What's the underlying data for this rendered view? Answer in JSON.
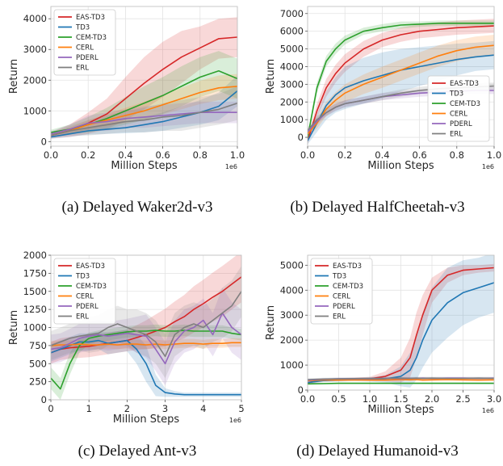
{
  "colors": {
    "EAS-TD3": "#d62728",
    "TD3": "#1f77b4",
    "CEM-TD3": "#2ca02c",
    "CERL": "#ff7f0e",
    "PDERL": "#9467bd",
    "ERL": "#7f7f7f"
  },
  "chart_data": [
    {
      "type": "line",
      "caption": "(a) Delayed Waker2d-v3",
      "xlabel": "Million Steps",
      "ylabel": "Return",
      "x_offset_label": "1e6",
      "xlim": [
        0,
        1.0
      ],
      "ylim": [
        -150,
        4400
      ],
      "xticks": [
        0.0,
        0.2,
        0.4,
        0.6,
        0.8,
        1.0
      ],
      "xtick_labels": [
        "0.0",
        "0.2",
        "0.4",
        "0.6",
        "0.8",
        "1.0"
      ],
      "yticks": [
        0,
        1000,
        2000,
        3000,
        4000
      ],
      "ytick_labels": [
        "0",
        "1000",
        "2000",
        "3000",
        "4000"
      ],
      "grid": true,
      "legend_position": "top-left",
      "x": [
        0,
        0.1,
        0.2,
        0.3,
        0.4,
        0.5,
        0.6,
        0.7,
        0.8,
        0.9,
        1.0
      ],
      "series": [
        {
          "name": "EAS-TD3",
          "values": [
            200,
            350,
            600,
            900,
            1400,
            1900,
            2350,
            2750,
            3050,
            3350,
            3400
          ],
          "band": [
            100,
            200,
            350,
            500,
            700,
            850,
            900,
            850,
            700,
            650,
            650
          ]
        },
        {
          "name": "TD3",
          "values": [
            150,
            250,
            350,
            400,
            450,
            550,
            650,
            800,
            950,
            1150,
            1650
          ],
          "band": [
            60,
            100,
            120,
            150,
            180,
            250,
            300,
            350,
            400,
            450,
            500
          ]
        },
        {
          "name": "CEM-TD3",
          "values": [
            300,
            400,
            550,
            750,
            1000,
            1250,
            1500,
            1800,
            2100,
            2300,
            2050
          ],
          "band": [
            80,
            150,
            250,
            350,
            450,
            550,
            600,
            650,
            650,
            650,
            650
          ]
        },
        {
          "name": "CERL",
          "values": [
            200,
            350,
            550,
            700,
            850,
            1000,
            1200,
            1400,
            1600,
            1750,
            1800
          ],
          "band": [
            60,
            100,
            150,
            200,
            250,
            300,
            320,
            350,
            380,
            400,
            400
          ]
        },
        {
          "name": "PDERL",
          "values": [
            250,
            400,
            600,
            650,
            750,
            800,
            850,
            900,
            950,
            950,
            950
          ],
          "band": [
            80,
            150,
            250,
            300,
            300,
            350,
            350,
            350,
            350,
            350,
            350
          ]
        },
        {
          "name": "ERL",
          "values": [
            200,
            350,
            450,
            550,
            650,
            700,
            800,
            850,
            950,
            1050,
            1250
          ],
          "band": [
            80,
            150,
            250,
            300,
            350,
            400,
            450,
            500,
            500,
            500,
            550
          ]
        }
      ]
    },
    {
      "type": "line",
      "caption": "(b) Delayed HalfCheetah-v3",
      "xlabel": "Million Steps",
      "ylabel": "Return",
      "x_offset_label": "1e6",
      "xlim": [
        0,
        1.0
      ],
      "ylim": [
        -500,
        7400
      ],
      "xticks": [
        0.0,
        0.2,
        0.4,
        0.6,
        0.8,
        1.0
      ],
      "xtick_labels": [
        "0.0",
        "0.2",
        "0.4",
        "0.6",
        "0.8",
        "1.0"
      ],
      "yticks": [
        0,
        1000,
        2000,
        3000,
        4000,
        5000,
        6000,
        7000
      ],
      "ytick_labels": [
        "0",
        "1000",
        "2000",
        "3000",
        "4000",
        "5000",
        "6000",
        "7000"
      ],
      "grid": true,
      "legend_position": "bottom-right",
      "x": [
        0,
        0.05,
        0.1,
        0.15,
        0.2,
        0.3,
        0.4,
        0.5,
        0.6,
        0.7,
        0.8,
        0.9,
        1.0
      ],
      "series": [
        {
          "name": "EAS-TD3",
          "values": [
            -200,
            1500,
            2800,
            3600,
            4200,
            5000,
            5500,
            5800,
            6000,
            6100,
            6200,
            6250,
            6300
          ],
          "band": [
            200,
            400,
            500,
            500,
            500,
            450,
            400,
            400,
            400,
            400,
            400,
            400,
            400
          ]
        },
        {
          "name": "TD3",
          "values": [
            -200,
            800,
            1800,
            2400,
            2800,
            3200,
            3500,
            3800,
            4000,
            4200,
            4400,
            4550,
            4650
          ],
          "band": [
            200,
            500,
            800,
            1000,
            1200,
            1300,
            1300,
            1200,
            1100,
            1000,
            900,
            800,
            800
          ]
        },
        {
          "name": "CEM-TD3",
          "values": [
            0,
            2800,
            4300,
            5000,
            5500,
            6000,
            6200,
            6350,
            6400,
            6450,
            6450,
            6450,
            6450
          ],
          "band": [
            200,
            300,
            300,
            300,
            250,
            200,
            200,
            200,
            150,
            150,
            150,
            150,
            150
          ]
        },
        {
          "name": "CERL",
          "values": [
            200,
            800,
            1600,
            2100,
            2500,
            3000,
            3400,
            3800,
            4200,
            4600,
            4900,
            5100,
            5200
          ],
          "band": [
            200,
            300,
            400,
            450,
            500,
            550,
            600,
            600,
            600,
            600,
            600,
            600,
            600
          ]
        },
        {
          "name": "PDERL",
          "values": [
            300,
            900,
            1400,
            1700,
            1900,
            2100,
            2300,
            2400,
            2500,
            2550,
            2600,
            2650,
            2650
          ],
          "band": [
            150,
            200,
            200,
            200,
            200,
            200,
            200,
            200,
            200,
            200,
            200,
            200,
            200
          ]
        },
        {
          "name": "ERL",
          "values": [
            400,
            1000,
            1400,
            1700,
            1900,
            2100,
            2300,
            2500,
            2650,
            2750,
            2800,
            2850,
            2900
          ],
          "band": [
            150,
            200,
            200,
            200,
            200,
            200,
            200,
            200,
            200,
            200,
            200,
            200,
            200
          ]
        }
      ]
    },
    {
      "type": "line",
      "caption": "(c) Delayed Ant-v3",
      "xlabel": "Million Steps",
      "ylabel": "Return",
      "x_offset_label": "1e6",
      "xlim": [
        0,
        5
      ],
      "ylim": [
        0,
        2000
      ],
      "xticks": [
        0,
        1,
        2,
        3,
        4,
        5
      ],
      "xtick_labels": [
        "0",
        "1",
        "2",
        "3",
        "4",
        "5"
      ],
      "yticks": [
        0,
        250,
        500,
        750,
        1000,
        1250,
        1500,
        1750,
        2000
      ],
      "ytick_labels": [
        "0",
        "250",
        "500",
        "750",
        "1000",
        "1250",
        "1500",
        "1750",
        "2000"
      ],
      "grid": true,
      "legend_position": "top-left",
      "x": [
        0,
        0.25,
        0.5,
        0.75,
        1.0,
        1.25,
        1.5,
        1.75,
        2.0,
        2.25,
        2.5,
        2.75,
        3.0,
        3.25,
        3.5,
        3.75,
        4.0,
        4.25,
        4.5,
        4.75,
        5.0
      ],
      "series": [
        {
          "name": "EAS-TD3",
          "values": [
            650,
            700,
            720,
            730,
            740,
            760,
            780,
            800,
            820,
            860,
            900,
            950,
            1000,
            1080,
            1150,
            1250,
            1330,
            1420,
            1500,
            1600,
            1700
          ],
          "band": [
            150,
            150,
            150,
            150,
            150,
            150,
            150,
            150,
            150,
            170,
            200,
            230,
            260,
            280,
            300,
            320,
            330,
            340,
            350,
            350,
            350
          ]
        },
        {
          "name": "TD3",
          "values": [
            650,
            700,
            750,
            800,
            800,
            820,
            780,
            800,
            820,
            700,
            500,
            200,
            100,
            80,
            70,
            70,
            70,
            70,
            70,
            70,
            70
          ],
          "band": [
            120,
            120,
            120,
            120,
            120,
            120,
            150,
            150,
            150,
            200,
            250,
            150,
            60,
            40,
            30,
            30,
            30,
            30,
            30,
            30,
            30
          ]
        },
        {
          "name": "CEM-TD3",
          "values": [
            300,
            150,
            500,
            750,
            850,
            880,
            900,
            920,
            940,
            950,
            950,
            960,
            950,
            950,
            960,
            950,
            950,
            950,
            950,
            920,
            900
          ],
          "band": [
            150,
            150,
            150,
            100,
            80,
            80,
            80,
            80,
            80,
            80,
            80,
            80,
            80,
            80,
            80,
            80,
            80,
            80,
            80,
            80,
            80
          ]
        },
        {
          "name": "CERL",
          "values": [
            750,
            760,
            760,
            770,
            760,
            760,
            770,
            760,
            770,
            770,
            760,
            770,
            760,
            770,
            780,
            780,
            770,
            780,
            780,
            790,
            790
          ],
          "band": [
            60,
            60,
            60,
            60,
            60,
            60,
            60,
            60,
            60,
            60,
            60,
            60,
            60,
            60,
            60,
            60,
            60,
            60,
            60,
            60,
            60
          ]
        },
        {
          "name": "PDERL",
          "values": [
            700,
            720,
            780,
            850,
            880,
            900,
            880,
            900,
            920,
            900,
            880,
            700,
            500,
            800,
            950,
            1000,
            1100,
            900,
            1200,
            1000,
            900
          ],
          "band": [
            200,
            200,
            200,
            200,
            200,
            200,
            200,
            200,
            200,
            250,
            300,
            300,
            300,
            300,
            300,
            300,
            300,
            300,
            350,
            350,
            350
          ]
        },
        {
          "name": "ERL",
          "values": [
            750,
            800,
            850,
            880,
            900,
            920,
            1000,
            1050,
            1000,
            950,
            900,
            800,
            600,
            900,
            1000,
            1050,
            1000,
            1100,
            1200,
            1300,
            1500
          ],
          "band": [
            200,
            200,
            200,
            200,
            250,
            250,
            250,
            250,
            250,
            300,
            300,
            300,
            300,
            300,
            300,
            300,
            300,
            300,
            350,
            350,
            350
          ]
        }
      ]
    },
    {
      "type": "line",
      "caption": "(d) Delayed Humanoid-v3",
      "xlabel": "Million Steps",
      "ylabel": "Return",
      "x_offset_label": "1e6",
      "xlim": [
        0,
        3.0
      ],
      "ylim": [
        0,
        5400
      ],
      "xticks": [
        0.0,
        0.5,
        1.0,
        1.5,
        2.0,
        2.5,
        3.0
      ],
      "xtick_labels": [
        "0.0",
        "0.5",
        "1.0",
        "1.5",
        "2.0",
        "2.5",
        "3.0"
      ],
      "yticks": [
        0,
        1000,
        2000,
        3000,
        4000,
        5000
      ],
      "ytick_labels": [
        "0",
        "1000",
        "2000",
        "3000",
        "4000",
        "5000"
      ],
      "grid": true,
      "legend_position": "top-left",
      "x": [
        0,
        0.25,
        0.5,
        0.75,
        1.0,
        1.25,
        1.5,
        1.65,
        1.75,
        1.85,
        2.0,
        2.25,
        2.5,
        2.75,
        3.0
      ],
      "series": [
        {
          "name": "EAS-TD3",
          "values": [
            300,
            400,
            420,
            440,
            450,
            550,
            800,
            1300,
            2200,
            3000,
            4000,
            4600,
            4800,
            4850,
            4900
          ],
          "band": [
            50,
            60,
            60,
            60,
            80,
            200,
            500,
            800,
            900,
            800,
            500,
            300,
            200,
            150,
            150
          ]
        },
        {
          "name": "TD3",
          "values": [
            300,
            380,
            400,
            420,
            420,
            450,
            550,
            800,
            1300,
            2000,
            2800,
            3500,
            3900,
            4100,
            4300
          ],
          "band": [
            50,
            60,
            60,
            60,
            80,
            150,
            400,
            700,
            900,
            1100,
            1300,
            1400,
            1300,
            1200,
            1200
          ]
        },
        {
          "name": "CEM-TD3",
          "values": [
            250,
            260,
            270,
            270,
            270,
            270,
            270,
            270,
            270,
            270,
            270,
            270,
            270,
            270,
            270
          ],
          "band": [
            30,
            30,
            30,
            30,
            30,
            30,
            30,
            30,
            30,
            30,
            30,
            30,
            30,
            30,
            30
          ]
        },
        {
          "name": "CERL",
          "values": [
            380,
            400,
            400,
            410,
            400,
            400,
            420,
            410,
            420,
            400,
            410,
            420,
            410,
            400,
            410
          ],
          "band": [
            40,
            40,
            40,
            40,
            40,
            40,
            40,
            40,
            40,
            40,
            40,
            40,
            40,
            40,
            40
          ]
        },
        {
          "name": "PDERL",
          "values": [
            400,
            430,
            450,
            450,
            460,
            470,
            460,
            470,
            470,
            480,
            470,
            480,
            480,
            470,
            480
          ],
          "band": [
            50,
            50,
            50,
            50,
            50,
            50,
            50,
            50,
            50,
            50,
            50,
            50,
            50,
            50,
            50
          ]
        },
        {
          "name": "ERL",
          "values": [
            420,
            440,
            450,
            460,
            470,
            470,
            480,
            470,
            480,
            470,
            480,
            470,
            470,
            480,
            470
          ],
          "band": [
            50,
            50,
            50,
            50,
            50,
            50,
            50,
            50,
            50,
            50,
            50,
            50,
            50,
            50,
            50
          ]
        }
      ]
    }
  ]
}
